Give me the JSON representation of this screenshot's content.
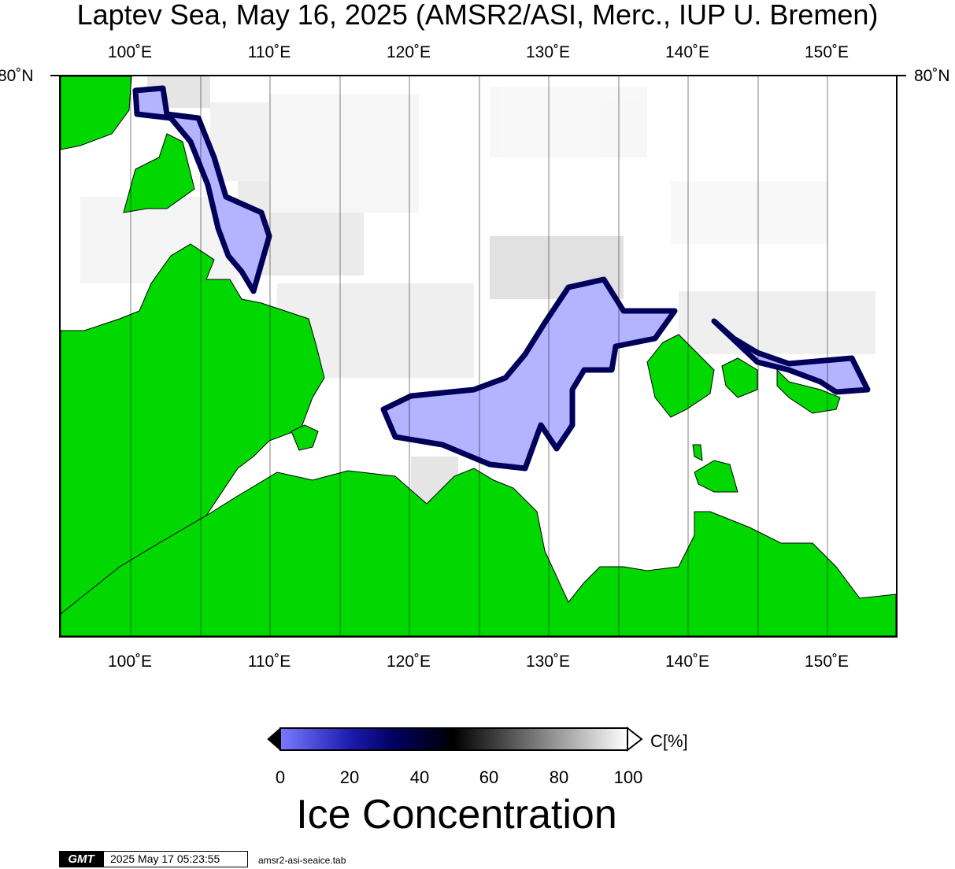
{
  "title": "Laptev Sea, May 16, 2025 (AMSR2/ASI, Merc., IUP U. Bremen)",
  "lon_ticks": [
    "100˚E",
    "110˚E",
    "120˚E",
    "130˚E",
    "140˚E",
    "150˚E"
  ],
  "lat_label": "80˚N",
  "colorbar": {
    "ticks": [
      "0",
      "20",
      "40",
      "60",
      "80",
      "100"
    ],
    "unit": "C[%]",
    "title": "Ice Concentration"
  },
  "footer": {
    "logo": "GMT",
    "timestamp": "2025 May 17 05:23:55",
    "source": "amsr2-asi-seaice.tab"
  },
  "colors": {
    "land": "#00d800",
    "open_water": "#b3b3ff",
    "ice_edge": "#00005a",
    "full_ice": "#ffffff"
  }
}
